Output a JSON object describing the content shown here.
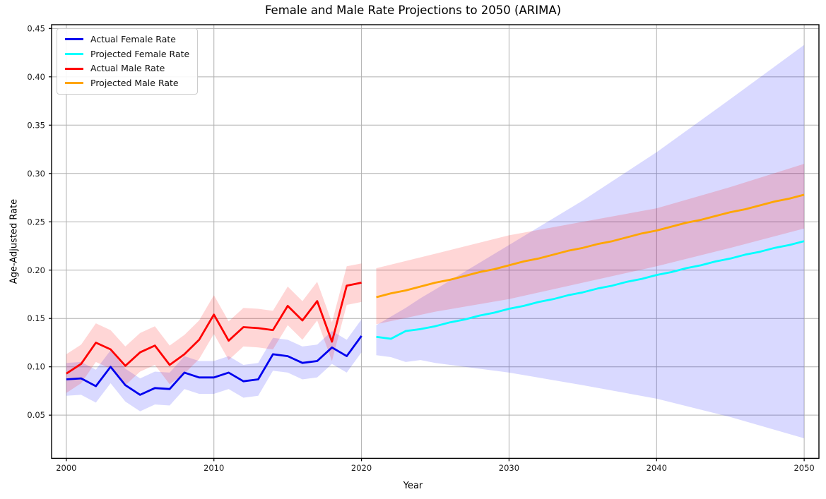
{
  "chart_data": {
    "type": "line",
    "title": "Female and Male Rate Projections to 2050 (ARIMA)",
    "xlabel": "Year",
    "ylabel": "Age-Adjusted Rate",
    "xlim": [
      1999,
      2051
    ],
    "ylim": [
      0.0053,
      0.4539
    ],
    "xticks": [
      2000,
      2010,
      2020,
      2030,
      2040,
      2050
    ],
    "yticks": [
      0.05,
      0.1,
      0.15,
      0.2,
      0.25,
      0.3,
      0.35,
      0.4,
      0.45
    ],
    "grid": true,
    "grid_color": "#b0b0b0",
    "axis_color": "#000000",
    "legend_position": "upper-left",
    "series": [
      {
        "name": "Actual Female Rate",
        "color": "#0000ee",
        "x": [
          2000,
          2001,
          2002,
          2003,
          2004,
          2005,
          2006,
          2007,
          2008,
          2009,
          2010,
          2011,
          2012,
          2013,
          2014,
          2015,
          2016,
          2017,
          2018,
          2019,
          2020
        ],
        "y": [
          0.087,
          0.088,
          0.08,
          0.1,
          0.081,
          0.071,
          0.078,
          0.077,
          0.094,
          0.089,
          0.089,
          0.094,
          0.085,
          0.087,
          0.113,
          0.111,
          0.104,
          0.106,
          0.12,
          0.111,
          0.132
        ]
      },
      {
        "name": "Projected Female Rate",
        "color": "#00ffff",
        "x": [
          2021,
          2022,
          2023,
          2024,
          2025,
          2026,
          2027,
          2028,
          2029,
          2030,
          2031,
          2032,
          2033,
          2034,
          2035,
          2036,
          2037,
          2038,
          2039,
          2040,
          2041,
          2042,
          2043,
          2044,
          2045,
          2046,
          2047,
          2048,
          2049,
          2050
        ],
        "y": [
          0.131,
          0.129,
          0.137,
          0.139,
          0.142,
          0.146,
          0.149,
          0.153,
          0.156,
          0.16,
          0.163,
          0.167,
          0.17,
          0.174,
          0.177,
          0.181,
          0.184,
          0.188,
          0.191,
          0.195,
          0.198,
          0.202,
          0.205,
          0.209,
          0.212,
          0.216,
          0.219,
          0.223,
          0.226,
          0.23
        ]
      },
      {
        "name": "Actual Male Rate",
        "color": "#ff0000",
        "x": [
          2000,
          2001,
          2002,
          2003,
          2004,
          2005,
          2006,
          2007,
          2008,
          2009,
          2010,
          2011,
          2012,
          2013,
          2014,
          2015,
          2016,
          2017,
          2018,
          2019,
          2020
        ],
        "y": [
          0.093,
          0.103,
          0.125,
          0.118,
          0.101,
          0.115,
          0.122,
          0.102,
          0.113,
          0.128,
          0.154,
          0.127,
          0.141,
          0.14,
          0.138,
          0.163,
          0.148,
          0.168,
          0.126,
          0.184,
          0.187
        ]
      },
      {
        "name": "Projected Male Rate",
        "color": "#ffa500",
        "x": [
          2021,
          2022,
          2023,
          2024,
          2025,
          2026,
          2027,
          2028,
          2029,
          2030,
          2031,
          2032,
          2033,
          2034,
          2035,
          2036,
          2037,
          2038,
          2039,
          2040,
          2041,
          2042,
          2043,
          2044,
          2045,
          2046,
          2047,
          2048,
          2049,
          2050
        ],
        "y": [
          0.172,
          0.176,
          0.179,
          0.183,
          0.187,
          0.19,
          0.194,
          0.198,
          0.201,
          0.205,
          0.209,
          0.212,
          0.216,
          0.22,
          0.223,
          0.227,
          0.23,
          0.234,
          0.238,
          0.241,
          0.245,
          0.249,
          0.252,
          0.256,
          0.26,
          0.263,
          0.267,
          0.271,
          0.274,
          0.278
        ]
      }
    ],
    "bands": [
      {
        "name": "female-actual-ci",
        "fill": "#0000ff",
        "alpha": 0.15,
        "x": [
          2000,
          2001,
          2002,
          2003,
          2004,
          2005,
          2006,
          2007,
          2008,
          2009,
          2010,
          2011,
          2012,
          2013,
          2014,
          2015,
          2016,
          2017,
          2018,
          2019,
          2020
        ],
        "lower": [
          0.07,
          0.071,
          0.063,
          0.083,
          0.064,
          0.054,
          0.061,
          0.06,
          0.077,
          0.072,
          0.072,
          0.077,
          0.068,
          0.07,
          0.096,
          0.094,
          0.087,
          0.089,
          0.103,
          0.094,
          0.115
        ],
        "upper": [
          0.104,
          0.105,
          0.097,
          0.117,
          0.098,
          0.088,
          0.095,
          0.094,
          0.111,
          0.106,
          0.106,
          0.111,
          0.102,
          0.104,
          0.13,
          0.128,
          0.121,
          0.123,
          0.137,
          0.128,
          0.149
        ]
      },
      {
        "name": "female-projected-ci",
        "fill": "#0000ff",
        "alpha": 0.15,
        "x": [
          2021,
          2022,
          2023,
          2024,
          2025,
          2030,
          2035,
          2040,
          2045,
          2050
        ],
        "lower": [
          0.112,
          0.11,
          0.105,
          0.107,
          0.104,
          0.094,
          0.081,
          0.067,
          0.048,
          0.026
        ],
        "upper": [
          0.143,
          0.152,
          0.161,
          0.171,
          0.18,
          0.226,
          0.272,
          0.322,
          0.377,
          0.433
        ]
      },
      {
        "name": "male-actual-ci",
        "fill": "#ff0000",
        "alpha": 0.16,
        "x": [
          2000,
          2001,
          2002,
          2003,
          2004,
          2005,
          2006,
          2007,
          2008,
          2009,
          2010,
          2011,
          2012,
          2013,
          2014,
          2015,
          2016,
          2017,
          2018,
          2019,
          2020
        ],
        "lower": [
          0.073,
          0.083,
          0.105,
          0.098,
          0.081,
          0.095,
          0.102,
          0.082,
          0.093,
          0.108,
          0.134,
          0.107,
          0.121,
          0.12,
          0.118,
          0.143,
          0.128,
          0.148,
          0.106,
          0.164,
          0.167
        ],
        "upper": [
          0.113,
          0.123,
          0.145,
          0.138,
          0.121,
          0.135,
          0.142,
          0.122,
          0.133,
          0.148,
          0.174,
          0.147,
          0.161,
          0.16,
          0.158,
          0.183,
          0.168,
          0.188,
          0.146,
          0.204,
          0.207
        ]
      },
      {
        "name": "male-projected-ci",
        "fill": "#ff0000",
        "alpha": 0.16,
        "x": [
          2021,
          2025,
          2030,
          2035,
          2040,
          2045,
          2050
        ],
        "lower": [
          0.144,
          0.157,
          0.17,
          0.187,
          0.204,
          0.223,
          0.243
        ],
        "upper": [
          0.202,
          0.217,
          0.236,
          0.25,
          0.264,
          0.286,
          0.31
        ]
      }
    ]
  }
}
